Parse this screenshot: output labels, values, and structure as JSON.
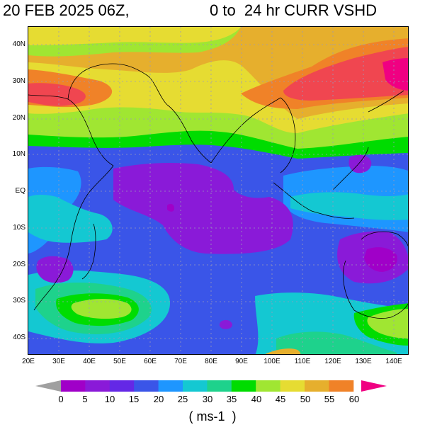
{
  "title_left": "20 FEB 2025 06Z,",
  "title_right": "0 to  24 hr CURR VSHD",
  "units": "( ms-1  )",
  "lat_labels": [
    "40N",
    "30N",
    "20N",
    "10N",
    "EQ",
    "10S",
    "20S",
    "30S",
    "40S"
  ],
  "lon_labels": [
    "20E",
    "30E",
    "40E",
    "50E",
    "60E",
    "70E",
    "80E",
    "90E",
    "100E",
    "110E",
    "120E",
    "130E",
    "140E"
  ],
  "colorbar": {
    "labels": [
      "0",
      "5",
      "10",
      "15",
      "20",
      "25",
      "30",
      "35",
      "40",
      "45",
      "50",
      "55",
      "60"
    ],
    "under_color": "#a0a0a0",
    "colors": [
      "#a000c8",
      "#8a1ad8",
      "#6428e6",
      "#3a55e8",
      "#1e96ff",
      "#14c8d2",
      "#1ed28c",
      "#00dc00",
      "#a0e632",
      "#e6dc32",
      "#e6af2d",
      "#f08228",
      "#f04650"
    ],
    "over_color": "#f00082"
  }
}
